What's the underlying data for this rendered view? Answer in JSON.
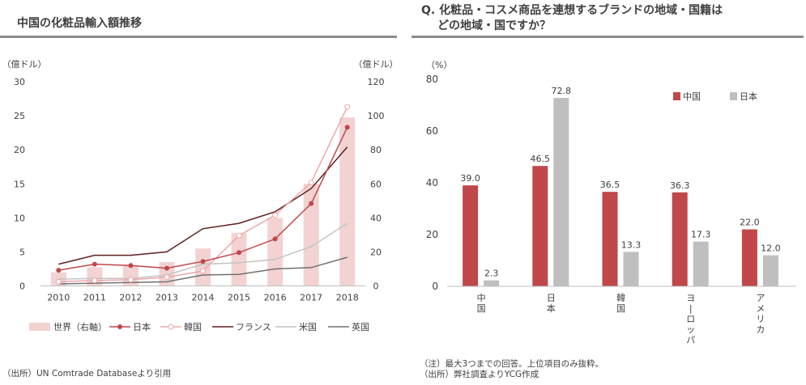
{
  "left_panel": {
    "title": "中国の化粧品輸入額推移",
    "source": "（出所）UN Comtrade Databaseより引用"
  },
  "right_panel": {
    "title_line1": "Q. 化粧品・コスメ商品を連想するブランドの地域・国籍は",
    "title_line2": "どの地域・国ですか？",
    "note": "（注）最大3つまでの回答。上位項目のみ抜粋。",
    "source": "（出所）弊社調査よりYCG作成"
  },
  "colors": {
    "world_bar": "#f2d3d2",
    "japan": "#c0474a",
    "korea": "#eda7a9",
    "france": "#5e1f1d",
    "usa": "#c4c4c4",
    "uk": "#707070",
    "china_bar": "#c0474a",
    "japan_bar": "#bfbfbf"
  },
  "chart_data": [
    {
      "type": "bar+line",
      "title": "中国の化粧品輸入額推移",
      "y_left_unit": "（億ドル）",
      "y_right_unit": "（億ドル）",
      "ylim_left": [
        0,
        30
      ],
      "ylim_right": [
        0,
        120
      ],
      "yticks_left": [
        0,
        5,
        10,
        15,
        20,
        25,
        30
      ],
      "yticks_right": [
        0,
        20,
        40,
        60,
        80,
        100,
        120
      ],
      "categories": [
        "2010",
        "2011",
        "2012",
        "2013",
        "2014",
        "2015",
        "2016",
        "2017",
        "2018"
      ],
      "bar_series": {
        "name": "世界（右軸）",
        "axis": "right",
        "values": [
          8,
          11,
          12,
          14,
          22,
          31,
          40,
          60,
          99
        ]
      },
      "line_series": [
        {
          "name": "日本",
          "axis": "left",
          "marker": "filled",
          "values": [
            2.3,
            3.2,
            3.0,
            2.6,
            3.6,
            4.9,
            6.9,
            12.1,
            23.3
          ]
        },
        {
          "name": "韓国",
          "axis": "left",
          "marker": "open",
          "values": [
            0.6,
            0.8,
            0.9,
            1.3,
            2.2,
            7.4,
            10.4,
            15.2,
            26.3
          ]
        },
        {
          "name": "フランス",
          "axis": "left",
          "marker": "none",
          "values": [
            3.2,
            4.5,
            4.5,
            5.0,
            8.4,
            9.2,
            10.9,
            14.3,
            20.4
          ]
        },
        {
          "name": "米国",
          "axis": "left",
          "marker": "none",
          "values": [
            1.0,
            1.1,
            1.1,
            1.6,
            3.2,
            3.4,
            3.9,
            5.8,
            9.2
          ]
        },
        {
          "name": "英国",
          "axis": "left",
          "marker": "none",
          "values": [
            0.3,
            0.4,
            0.5,
            0.6,
            1.6,
            1.7,
            2.5,
            2.7,
            4.2
          ]
        }
      ],
      "legend_position": "bottom"
    },
    {
      "type": "bar",
      "title": "Q. 化粧品・コスメ商品を連想するブランドの地域・国籍は どの地域・国ですか？",
      "y_unit": "（%）",
      "ylim": [
        0,
        80
      ],
      "yticks": [
        0,
        20,
        40,
        60,
        80
      ],
      "categories": [
        "中国",
        "日本",
        "韓国",
        "ヨーロッパ",
        "アメリカ"
      ],
      "series": [
        {
          "name": "中国",
          "values": [
            39.0,
            46.5,
            36.5,
            36.3,
            22.0
          ]
        },
        {
          "name": "日本",
          "values": [
            2.3,
            72.8,
            13.3,
            17.3,
            12.0
          ]
        }
      ],
      "value_labels": [
        [
          "39.0",
          "46.5",
          "36.5",
          "36.3",
          "22.0"
        ],
        [
          "2.3",
          "72.8",
          "13.3",
          "17.3",
          "12.0"
        ]
      ],
      "legend_position": "top-right"
    }
  ]
}
